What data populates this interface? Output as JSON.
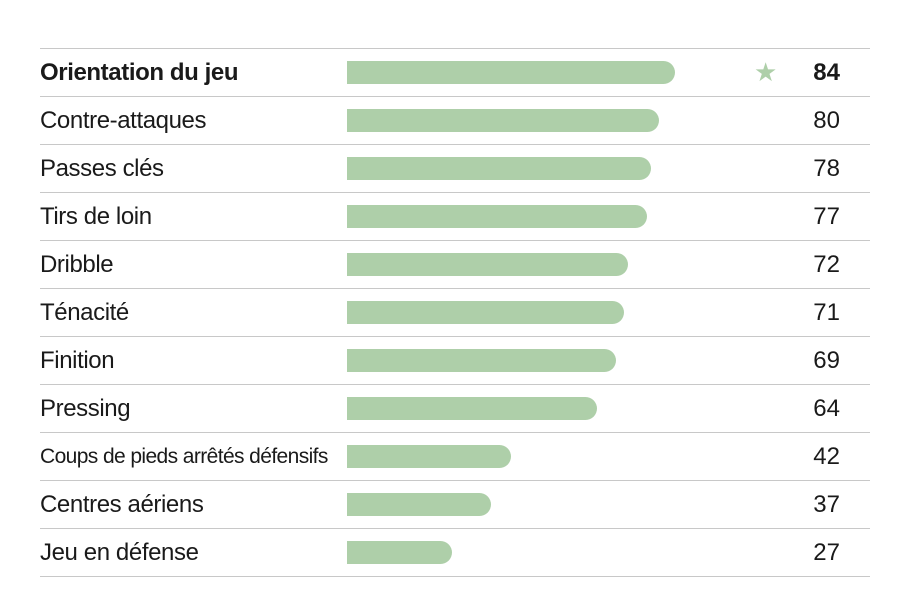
{
  "chart_data": {
    "type": "bar",
    "orientation": "horizontal",
    "categories": [
      "Orientation du jeu",
      "Contre-attaques",
      "Passes clés",
      "Tirs de loin",
      "Dribble",
      "Ténacité",
      "Finition",
      "Pressing",
      "Coups de pieds arrêtés défensifs",
      "Centres aériens",
      "Jeu en défense"
    ],
    "values": [
      84,
      80,
      78,
      77,
      72,
      71,
      69,
      64,
      42,
      37,
      27
    ],
    "xlim": [
      0,
      100
    ],
    "highlight_index": 0,
    "highlight_icon": "star-icon",
    "bar_color": "#aecfa9",
    "grid": false
  }
}
